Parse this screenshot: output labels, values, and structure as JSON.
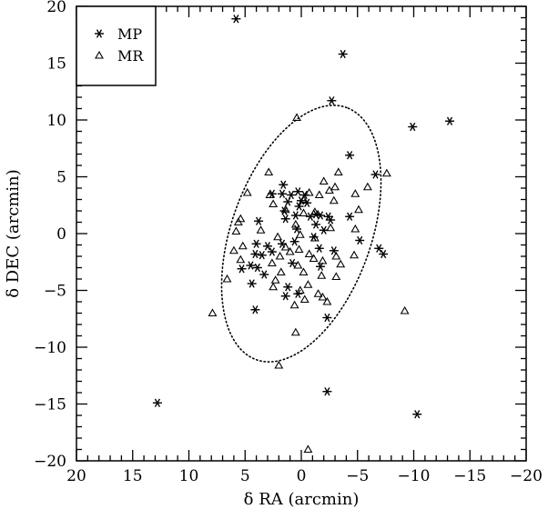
{
  "chart_data": {
    "type": "scatter",
    "xlabel": "δ RA (arcmin)",
    "ylabel": "δ DEC (arcmin)",
    "xlim": [
      20,
      -20
    ],
    "ylim": [
      -20,
      20
    ],
    "x_reversed": true,
    "xticks": [
      20,
      15,
      10,
      5,
      0,
      -5,
      -10,
      -15,
      -20
    ],
    "yticks": [
      -20,
      -15,
      -10,
      -5,
      0,
      5,
      10,
      15,
      20
    ],
    "legend_position": "top-left",
    "ellipse": {
      "style": "dotted",
      "center": [
        0.0,
        0.0
      ],
      "semi_major": 11.8,
      "semi_minor": 6.2,
      "angle_deg": 70
    },
    "series": [
      {
        "name": "MP",
        "marker": "asterisk",
        "points": [
          [
            5.8,
            18.9
          ],
          [
            -3.7,
            15.8
          ],
          [
            -2.7,
            11.7
          ],
          [
            -9.9,
            9.4
          ],
          [
            -13.2,
            9.9
          ],
          [
            -4.3,
            6.9
          ],
          [
            -6.6,
            5.2
          ],
          [
            1.6,
            4.3
          ],
          [
            1.7,
            3.5
          ],
          [
            0.9,
            3.4
          ],
          [
            0.3,
            3.7
          ],
          [
            -0.3,
            3.4
          ],
          [
            0.0,
            2.9
          ],
          [
            0.2,
            2.4
          ],
          [
            -0.5,
            2.7
          ],
          [
            1.2,
            2.8
          ],
          [
            2.6,
            3.5
          ],
          [
            1.5,
            2.0
          ],
          [
            0.5,
            1.6
          ],
          [
            -0.8,
            1.5
          ],
          [
            -1.3,
            1.7
          ],
          [
            -1.7,
            1.6
          ],
          [
            -2.4,
            1.5
          ],
          [
            -2.6,
            1.2
          ],
          [
            -4.3,
            1.5
          ],
          [
            3.8,
            1.1
          ],
          [
            1.4,
            1.3
          ],
          [
            0.4,
            0.4
          ],
          [
            -1.3,
            0.8
          ],
          [
            -2.0,
            0.3
          ],
          [
            -1.1,
            -0.3
          ],
          [
            4.0,
            -0.9
          ],
          [
            3.0,
            -1.1
          ],
          [
            4.1,
            -1.8
          ],
          [
            3.5,
            -1.9
          ],
          [
            2.6,
            -1.6
          ],
          [
            1.7,
            -0.9
          ],
          [
            0.6,
            -0.7
          ],
          [
            -1.6,
            -1.3
          ],
          [
            -2.9,
            -1.5
          ],
          [
            -5.2,
            -0.6
          ],
          [
            -6.9,
            -1.3
          ],
          [
            -7.3,
            -1.8
          ],
          [
            4.5,
            -2.8
          ],
          [
            5.3,
            -3.1
          ],
          [
            3.9,
            -3.0
          ],
          [
            3.3,
            -3.6
          ],
          [
            4.4,
            -4.4
          ],
          [
            0.8,
            -2.6
          ],
          [
            -1.7,
            -2.9
          ],
          [
            1.2,
            -4.7
          ],
          [
            1.4,
            -5.5
          ],
          [
            0.3,
            -5.3
          ],
          [
            4.1,
            -6.7
          ],
          [
            -2.3,
            -7.4
          ],
          [
            12.8,
            -14.9
          ],
          [
            -2.3,
            -13.9
          ],
          [
            -10.3,
            -15.9
          ]
        ]
      },
      {
        "name": "MR",
        "marker": "triangle",
        "points": [
          [
            0.4,
            10.2
          ],
          [
            -3.3,
            5.4
          ],
          [
            -7.6,
            5.3
          ],
          [
            -5.9,
            4.1
          ],
          [
            -3.0,
            4.1
          ],
          [
            -2.0,
            4.6
          ],
          [
            -2.5,
            3.8
          ],
          [
            -2.9,
            2.9
          ],
          [
            -4.8,
            3.5
          ],
          [
            2.9,
            5.4
          ],
          [
            4.8,
            3.6
          ],
          [
            2.8,
            3.4
          ],
          [
            2.5,
            2.6
          ],
          [
            1.4,
            2.1
          ],
          [
            -0.2,
            3.0
          ],
          [
            -0.7,
            3.6
          ],
          [
            -1.6,
            3.4
          ],
          [
            -0.2,
            1.8
          ],
          [
            -1.2,
            1.9
          ],
          [
            -5.1,
            2.1
          ],
          [
            3.6,
            0.3
          ],
          [
            5.4,
            1.3
          ],
          [
            5.6,
            1.0
          ],
          [
            5.8,
            0.2
          ],
          [
            0.5,
            0.8
          ],
          [
            0.1,
            -0.1
          ],
          [
            -1.2,
            -0.4
          ],
          [
            -2.6,
            0.5
          ],
          [
            -4.8,
            0.4
          ],
          [
            5.2,
            -1.1
          ],
          [
            6.0,
            -1.5
          ],
          [
            5.4,
            -2.3
          ],
          [
            6.6,
            -4.0
          ],
          [
            2.1,
            -0.3
          ],
          [
            1.4,
            -1.2
          ],
          [
            1.9,
            -2.0
          ],
          [
            2.6,
            -2.6
          ],
          [
            1.0,
            -1.6
          ],
          [
            0.2,
            -1.4
          ],
          [
            -0.7,
            -1.8
          ],
          [
            -1.1,
            -2.2
          ],
          [
            -1.9,
            -2.4
          ],
          [
            -3.1,
            -2.0
          ],
          [
            -3.5,
            -2.7
          ],
          [
            -4.7,
            -1.9
          ],
          [
            0.3,
            -2.8
          ],
          [
            -0.2,
            -3.4
          ],
          [
            -0.6,
            -4.5
          ],
          [
            -1.8,
            -3.7
          ],
          [
            -3.1,
            -3.8
          ],
          [
            2.5,
            -4.7
          ],
          [
            2.3,
            -4.1
          ],
          [
            1.8,
            -3.4
          ],
          [
            -1.5,
            -5.3
          ],
          [
            -1.9,
            -5.6
          ],
          [
            -2.3,
            -6.0
          ],
          [
            0.1,
            -5.0
          ],
          [
            -0.3,
            -5.8
          ],
          [
            0.6,
            -6.3
          ],
          [
            7.9,
            -7.0
          ],
          [
            0.5,
            -8.7
          ],
          [
            -9.2,
            -6.8
          ],
          [
            2.0,
            -11.6
          ],
          [
            -0.6,
            -19.0
          ]
        ]
      }
    ]
  }
}
